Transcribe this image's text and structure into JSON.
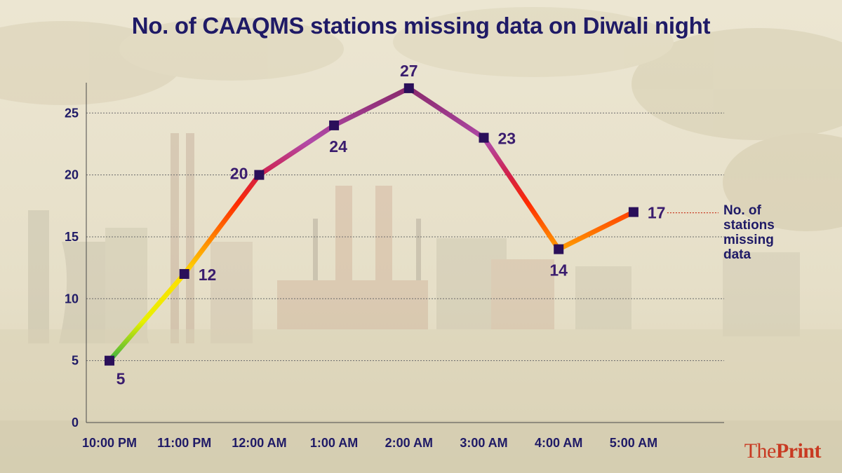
{
  "brand": {
    "name_part1": "The",
    "name_part2": "Print"
  },
  "colors": {
    "title": "#1f1a66",
    "marker": "#2a0f5a",
    "label": "#3a1c6e",
    "brand": "#c83a22",
    "background": "#e9e3d0"
  },
  "chart_data": {
    "type": "line",
    "title": "No. of CAAQMS stations missing data on Diwali night",
    "xlabel": "",
    "ylabel": "",
    "categories": [
      "10:00 PM",
      "11:00 PM",
      "12:00 AM",
      "1:00 AM",
      "2:00 AM",
      "3:00 AM",
      "4:00 AM",
      "5:00 AM"
    ],
    "series": [
      {
        "name": "No. of stations missing data",
        "values": [
          5,
          12,
          20,
          24,
          27,
          23,
          14,
          17
        ]
      }
    ],
    "ylim": [
      0,
      27
    ],
    "yticks": [
      0,
      5,
      10,
      15,
      20,
      25
    ],
    "grid": true,
    "legend": "right"
  }
}
